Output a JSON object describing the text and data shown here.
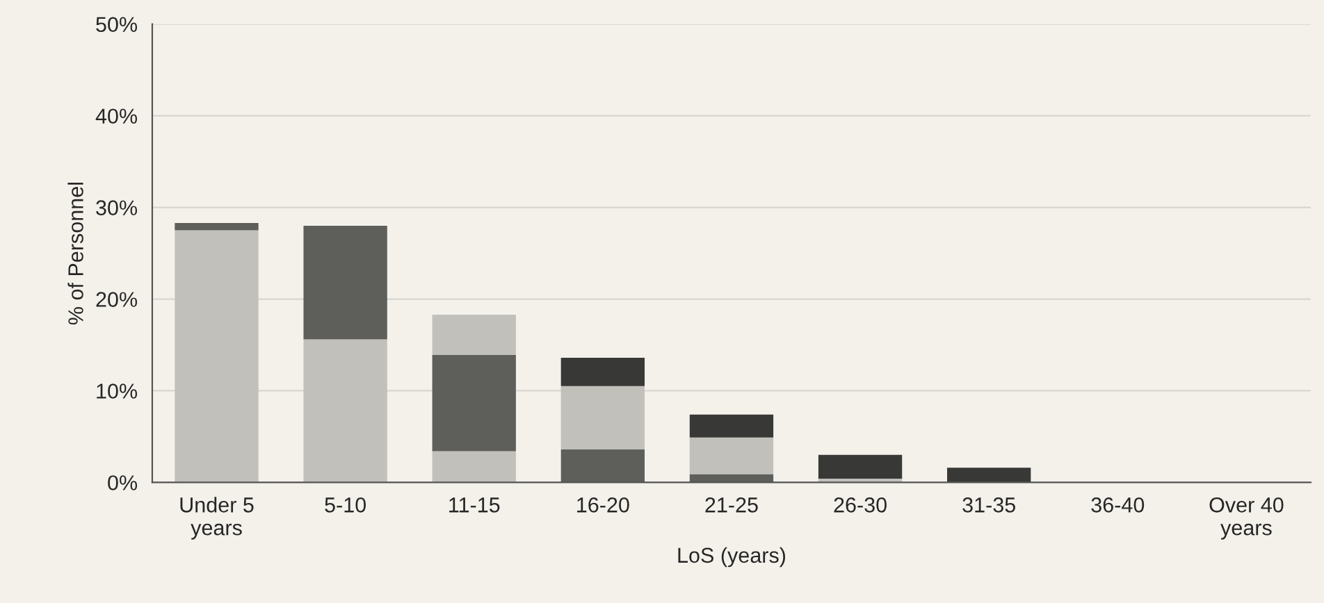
{
  "chart_data": {
    "type": "bar",
    "stacked": true,
    "xlabel": "LoS (years)",
    "ylabel": "% of Personnel",
    "categories": [
      "Under 5\nyears",
      "5-10",
      "11-15",
      "16-20",
      "21-25",
      "26-30",
      "31-35",
      "36-40",
      "Over 40\nyears"
    ],
    "series": [
      {
        "color": "#c2c0bb",
        "values": [
          27.5,
          15.6,
          3.4,
          0,
          0,
          0.4,
          0,
          0,
          0
        ]
      },
      {
        "color": "#5e5e5b",
        "values": [
          0.8,
          12.4,
          10.5,
          3.6,
          0.9,
          0,
          0,
          0,
          0
        ]
      },
      {
        "color": "#c2c0bb",
        "values": [
          0,
          0,
          4.4,
          6.9,
          4.0,
          0,
          0,
          0,
          0
        ]
      },
      {
        "color": "#383836",
        "values": [
          0,
          0,
          0,
          3.1,
          2.5,
          2.6,
          1.6,
          0,
          0
        ]
      }
    ],
    "ylim": [
      0,
      50
    ],
    "yticks": [
      {
        "value": 0,
        "label": "0%"
      },
      {
        "value": 10,
        "label": "10%"
      },
      {
        "value": 20,
        "label": "20%"
      },
      {
        "value": 30,
        "label": "30%"
      },
      {
        "value": 40,
        "label": "40%"
      },
      {
        "value": 50,
        "label": "50%"
      }
    ],
    "grid": "y"
  }
}
